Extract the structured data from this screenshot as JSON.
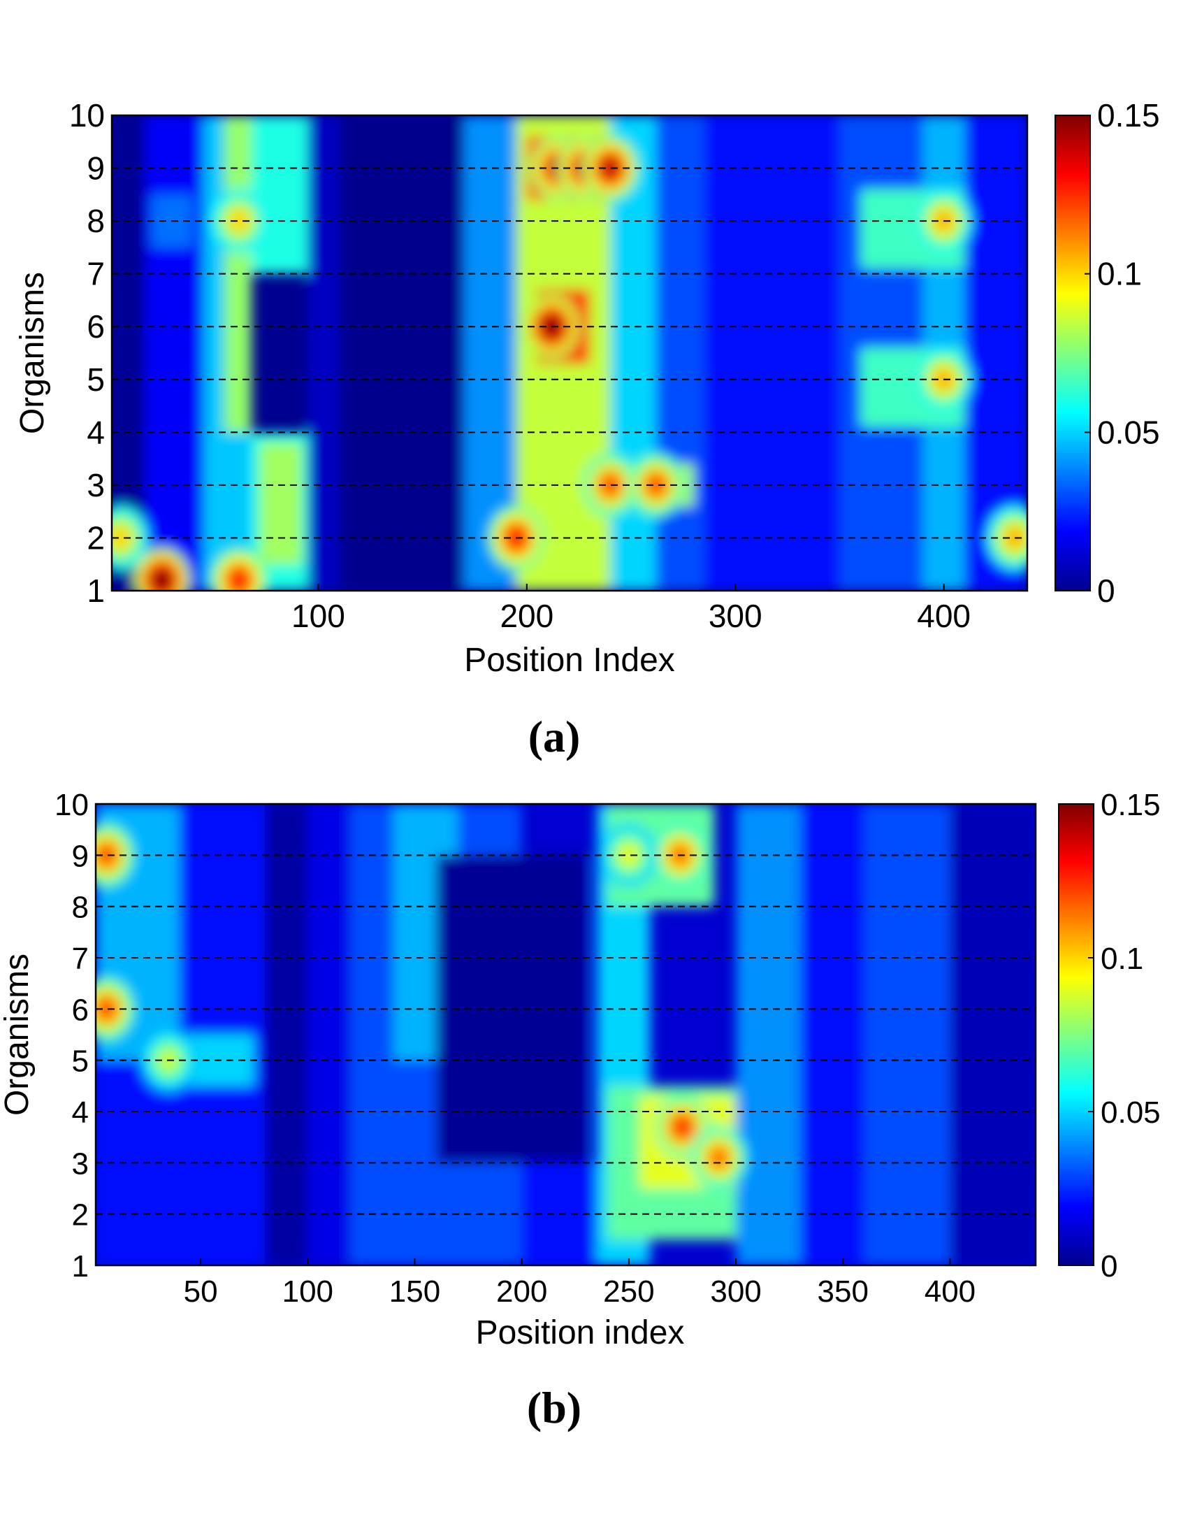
{
  "chart_data": [
    {
      "panel": "(a)",
      "type": "heatmap",
      "xlabel": "Position Index",
      "ylabel": "Organisms",
      "xlim": [
        1,
        440
      ],
      "ylim": [
        1,
        10
      ],
      "x_ticks": [
        100,
        200,
        300,
        400
      ],
      "y_ticks": [
        1,
        2,
        3,
        4,
        5,
        6,
        7,
        8,
        9,
        10
      ],
      "colorbar": {
        "min": 0,
        "max": 0.15,
        "ticks": [
          "0",
          "0.05",
          "0.1",
          "0.15"
        ],
        "colormap": "jet"
      },
      "grid": "dashed horizontal lines at each organism",
      "blobs": [
        {
          "x": [
            1,
            17
          ],
          "y": [
            1,
            10
          ],
          "value": 0.003
        },
        {
          "x": [
            17,
            45
          ],
          "y": [
            1,
            10
          ],
          "value": 0.018
        },
        {
          "x": [
            45,
            68
          ],
          "y": [
            1,
            10
          ],
          "value": 0.048
        },
        {
          "x": [
            55,
            68
          ],
          "y": [
            4,
            10
          ],
          "value": 0.078
        },
        {
          "x": [
            68,
            95
          ],
          "y": [
            7,
            10
          ],
          "value": 0.06
        },
        {
          "x": [
            68,
            95
          ],
          "y": [
            1,
            4
          ],
          "value": 0.06
        },
        {
          "x": [
            72,
            92
          ],
          "y": [
            1.5,
            3.8
          ],
          "value": 0.08
        },
        {
          "x": [
            95,
            110
          ],
          "y": [
            1,
            10
          ],
          "value": 0.01
        },
        {
          "x": [
            110,
            170
          ],
          "y": [
            1,
            10
          ],
          "value": 0.002
        },
        {
          "x": [
            170,
            195
          ],
          "y": [
            1,
            10
          ],
          "value": 0.04
        },
        {
          "x": [
            195,
            240
          ],
          "y": [
            1,
            10
          ],
          "value": 0.085
        },
        {
          "x": [
            240,
            262
          ],
          "y": [
            1,
            10
          ],
          "value": 0.05
        },
        {
          "x": [
            262,
            285
          ],
          "y": [
            1,
            10
          ],
          "value": 0.03
        },
        {
          "x": [
            285,
            350
          ],
          "y": [
            1,
            10
          ],
          "value": 0.02
        },
        {
          "x": [
            350,
            390
          ],
          "y": [
            1,
            10
          ],
          "value": 0.03
        },
        {
          "x": [
            390,
            410
          ],
          "y": [
            1,
            10
          ],
          "value": 0.045
        },
        {
          "x": [
            410,
            440
          ],
          "y": [
            1,
            10
          ],
          "value": 0.02
        },
        {
          "x": [
            200,
            240
          ],
          "y": [
            8.4,
            9.6
          ],
          "value": 0.12
        },
        {
          "x": [
            205,
            230
          ],
          "y": [
            5.3,
            6.7
          ],
          "value": 0.13
        },
        {
          "x": [
            230,
            280
          ],
          "y": [
            2.6,
            3.4
          ],
          "value": 0.08
        },
        {
          "x": [
            360,
            410
          ],
          "y": [
            7.1,
            8.6
          ],
          "value": 0.065
        },
        {
          "x": [
            360,
            410
          ],
          "y": [
            4.1,
            5.6
          ],
          "value": 0.065
        },
        {
          "x": [
            20,
            40
          ],
          "y": [
            7.5,
            8.5
          ],
          "value": 0.035
        }
      ],
      "hotspots": [
        {
          "x": 215,
          "y": 9,
          "value": 0.14
        },
        {
          "x": 228,
          "y": 9,
          "value": 0.14
        },
        {
          "x": 240,
          "y": 9,
          "value": 0.14
        },
        {
          "x": 212,
          "y": 6,
          "value": 0.15
        },
        {
          "x": 240,
          "y": 3,
          "value": 0.12
        },
        {
          "x": 262,
          "y": 3,
          "value": 0.12
        },
        {
          "x": 25,
          "y": 1.2,
          "value": 0.15
        },
        {
          "x": 62,
          "y": 1.2,
          "value": 0.13
        },
        {
          "x": 5,
          "y": 2,
          "value": 0.1
        },
        {
          "x": 62,
          "y": 8,
          "value": 0.1
        },
        {
          "x": 400,
          "y": 8,
          "value": 0.105
        },
        {
          "x": 400,
          "y": 5,
          "value": 0.105
        },
        {
          "x": 434,
          "y": 2,
          "value": 0.105
        },
        {
          "x": 195,
          "y": 2,
          "value": 0.13
        }
      ]
    },
    {
      "panel": "(b)",
      "type": "heatmap",
      "xlabel": "Position index",
      "ylabel": "Organisms",
      "xlim": [
        1,
        440
      ],
      "ylim": [
        1,
        10
      ],
      "x_ticks": [
        50,
        100,
        150,
        200,
        250,
        300,
        350,
        400
      ],
      "y_ticks": [
        1,
        2,
        3,
        4,
        5,
        6,
        7,
        8,
        9,
        10
      ],
      "colorbar": {
        "min": 0,
        "max": 0.15,
        "ticks": [
          "0",
          "0.05",
          "0.1",
          "0.15"
        ],
        "colormap": "jet"
      },
      "grid": "dashed horizontal lines at each organism",
      "blobs": [
        {
          "x": [
            1,
            80
          ],
          "y": [
            1,
            10
          ],
          "value": 0.02
        },
        {
          "x": [
            80,
            100
          ],
          "y": [
            1,
            10
          ],
          "value": 0.005
        },
        {
          "x": [
            100,
            120
          ],
          "y": [
            1,
            10
          ],
          "value": 0.015
        },
        {
          "x": [
            120,
            200
          ],
          "y": [
            1,
            10
          ],
          "value": 0.03
        },
        {
          "x": [
            140,
            170
          ],
          "y": [
            5,
            10
          ],
          "value": 0.045
        },
        {
          "x": [
            160,
            230
          ],
          "y": [
            3,
            9
          ],
          "value": 0.003
        },
        {
          "x": [
            200,
            235
          ],
          "y": [
            1,
            3
          ],
          "value": 0.02
        },
        {
          "x": [
            235,
            260
          ],
          "y": [
            1,
            10
          ],
          "value": 0.05
        },
        {
          "x": [
            240,
            290
          ],
          "y": [
            8,
            10
          ],
          "value": 0.07
        },
        {
          "x": [
            240,
            300
          ],
          "y": [
            1.5,
            4.5
          ],
          "value": 0.07
        },
        {
          "x": [
            255,
            300
          ],
          "y": [
            2.5,
            4.3
          ],
          "value": 0.09
        },
        {
          "x": [
            300,
            330
          ],
          "y": [
            1,
            10
          ],
          "value": 0.04
        },
        {
          "x": [
            330,
            360
          ],
          "y": [
            1,
            10
          ],
          "value": 0.02
        },
        {
          "x": [
            360,
            400
          ],
          "y": [
            1,
            10
          ],
          "value": 0.03
        },
        {
          "x": [
            400,
            440
          ],
          "y": [
            1,
            10
          ],
          "value": 0.008
        },
        {
          "x": [
            1,
            40
          ],
          "y": [
            5,
            10
          ],
          "value": 0.045
        },
        {
          "x": [
            30,
            75
          ],
          "y": [
            4.5,
            5.5
          ],
          "value": 0.05
        }
      ],
      "hotspots": [
        {
          "x": 6,
          "y": 9,
          "value": 0.12
        },
        {
          "x": 6,
          "y": 6,
          "value": 0.12
        },
        {
          "x": 35,
          "y": 5,
          "value": 0.085
        },
        {
          "x": 275,
          "y": 3.7,
          "value": 0.125
        },
        {
          "x": 292,
          "y": 3.1,
          "value": 0.115
        },
        {
          "x": 274,
          "y": 9,
          "value": 0.115
        },
        {
          "x": 250,
          "y": 9,
          "value": 0.09
        }
      ]
    }
  ]
}
